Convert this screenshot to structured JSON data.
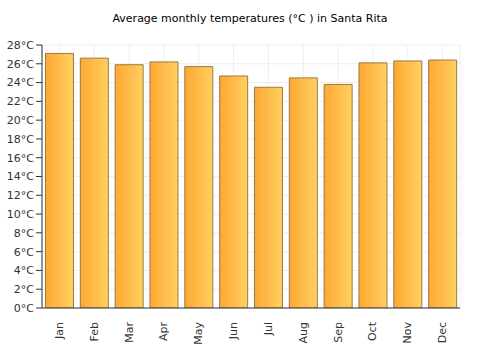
{
  "chart_data": {
    "type": "bar",
    "title": "Average monthly temperatures (°C ) in Santa Rita",
    "categories": [
      "Jan",
      "Feb",
      "Mar",
      "Apr",
      "May",
      "Jun",
      "Jul",
      "Aug",
      "Sep",
      "Oct",
      "Nov",
      "Dec"
    ],
    "values": [
      27.1,
      26.6,
      25.9,
      26.2,
      25.7,
      24.7,
      23.5,
      24.5,
      23.8,
      26.1,
      26.3,
      26.4
    ],
    "color": "#ffa733",
    "ylim": [
      0,
      28
    ],
    "yticks": [
      {
        "value": 0,
        "label": "0°C"
      },
      {
        "value": 2,
        "label": "2°C"
      },
      {
        "value": 4,
        "label": "4°C"
      },
      {
        "value": 6,
        "label": "6°C"
      },
      {
        "value": 8,
        "label": "8°C"
      },
      {
        "value": 10,
        "label": "10°C"
      },
      {
        "value": 12,
        "label": "12°C"
      },
      {
        "value": 14,
        "label": "14°C"
      },
      {
        "value": 16,
        "label": "16°C"
      },
      {
        "value": 18,
        "label": "18°C"
      },
      {
        "value": 20,
        "label": "20°C"
      },
      {
        "value": 22,
        "label": "22°C"
      },
      {
        "value": 24,
        "label": "24°C"
      },
      {
        "value": 26,
        "label": "26°C"
      },
      {
        "value": 28,
        "label": "28°C"
      }
    ],
    "grid": true
  }
}
